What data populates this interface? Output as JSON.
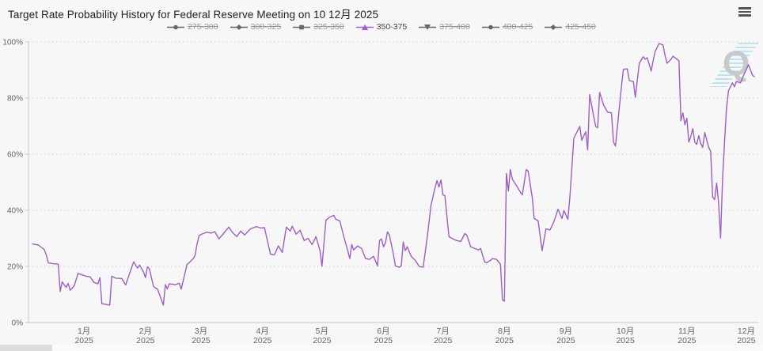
{
  "header": {
    "title": "Target Rate Probability History for Federal Reserve Meeting on 10 12月 2025"
  },
  "colors": {
    "active_series": "#9c5fc4",
    "inactive_legend": "#666666",
    "grid": "#d2d2d2",
    "axis": "#c9c9c9",
    "axis_label": "#666666",
    "background": "#f7f7f8",
    "watermark_letter": "#c9c9c9",
    "watermark_hatch": "#b9e1f3"
  },
  "watermark": {
    "letter": "Q"
  },
  "legend": {
    "items": [
      {
        "label": "275-300",
        "marker": "circle",
        "active": false
      },
      {
        "label": "300-325",
        "marker": "diamond",
        "active": false
      },
      {
        "label": "325-350",
        "marker": "square",
        "active": false
      },
      {
        "label": "350-375",
        "marker": "triangle-up",
        "active": true,
        "color": "#9c5fc4"
      },
      {
        "label": "375-400",
        "marker": "triangle-down",
        "active": false
      },
      {
        "label": "400-425",
        "marker": "circle",
        "active": false
      },
      {
        "label": "425-450",
        "marker": "diamond",
        "active": false
      }
    ]
  },
  "chart_data": {
    "type": "line",
    "title": "Target Rate Probability History for Federal Reserve Meeting on 10 12月 2025",
    "xlabel": "",
    "ylabel": "",
    "ylim": [
      0,
      100
    ],
    "grid": "dotted-horizontal",
    "legend_position": "top",
    "y_ticks": [
      {
        "label": "0%",
        "value": 0
      },
      {
        "label": "20%",
        "value": 20
      },
      {
        "label": "40%",
        "value": 40
      },
      {
        "label": "60%",
        "value": 60
      },
      {
        "label": "80%",
        "value": 80
      },
      {
        "label": "100%",
        "value": 100
      }
    ],
    "x_ticks": [
      {
        "month": "1月",
        "year": "2025",
        "date": "2025-01-01"
      },
      {
        "month": "2月",
        "year": "2025",
        "date": "2025-02-01"
      },
      {
        "month": "3月",
        "year": "2025",
        "date": "2025-03-01"
      },
      {
        "month": "4月",
        "year": "2025",
        "date": "2025-04-01"
      },
      {
        "month": "5月",
        "year": "2025",
        "date": "2025-05-01"
      },
      {
        "month": "6月",
        "year": "2025",
        "date": "2025-06-01"
      },
      {
        "month": "7月",
        "year": "2025",
        "date": "2025-07-01"
      },
      {
        "month": "8月",
        "year": "2025",
        "date": "2025-08-01"
      },
      {
        "month": "9月",
        "year": "2025",
        "date": "2025-09-01"
      },
      {
        "month": "10月",
        "year": "2025",
        "date": "2025-10-01"
      },
      {
        "month": "11月",
        "year": "2025",
        "date": "2025-11-01"
      },
      {
        "month": "12月",
        "year": "2025",
        "date": "2025-12-01"
      }
    ],
    "series": [
      {
        "name": "275-300",
        "visible": false
      },
      {
        "name": "300-325",
        "visible": false
      },
      {
        "name": "325-350",
        "visible": false
      },
      {
        "name": "350-375",
        "visible": true,
        "color": "#9c5fc4",
        "marker": "triangle-up",
        "points": [
          [
            "2024-12-06",
            28.0
          ],
          [
            "2024-12-09",
            27.6
          ],
          [
            "2024-12-12",
            26.0
          ],
          [
            "2024-12-13",
            24.0
          ],
          [
            "2024-12-14",
            21.3
          ],
          [
            "2024-12-16",
            21.0
          ],
          [
            "2024-12-19",
            20.8
          ],
          [
            "2024-12-20",
            11.0
          ],
          [
            "2024-12-21",
            14.5
          ],
          [
            "2024-12-23",
            12.5
          ],
          [
            "2024-12-24",
            14.0
          ],
          [
            "2024-12-25",
            11.5
          ],
          [
            "2024-12-27",
            13.0
          ],
          [
            "2024-12-29",
            17.5
          ],
          [
            "2024-12-31",
            17.0
          ],
          [
            "2025-01-02",
            16.5
          ],
          [
            "2025-01-04",
            16.3
          ],
          [
            "2025-01-06",
            14.3
          ],
          [
            "2025-01-08",
            13.8
          ],
          [
            "2025-01-09",
            16.0
          ],
          [
            "2025-01-10",
            6.7
          ],
          [
            "2025-01-12",
            6.5
          ],
          [
            "2025-01-14",
            6.2
          ],
          [
            "2025-01-15",
            16.5
          ],
          [
            "2025-01-17",
            15.8
          ],
          [
            "2025-01-20",
            15.7
          ],
          [
            "2025-01-22",
            13.4
          ],
          [
            "2025-01-26",
            21.6
          ],
          [
            "2025-01-28",
            19.4
          ],
          [
            "2025-01-29",
            20.5
          ],
          [
            "2025-01-31",
            18.0
          ],
          [
            "2025-02-01",
            16.0
          ],
          [
            "2025-02-02",
            19.9
          ],
          [
            "2025-02-03",
            19.1
          ],
          [
            "2025-02-05",
            13.0
          ],
          [
            "2025-02-06",
            12.3
          ],
          [
            "2025-02-07",
            12.0
          ],
          [
            "2025-02-10",
            6.2
          ],
          [
            "2025-02-11",
            13.5
          ],
          [
            "2025-02-12",
            12.0
          ],
          [
            "2025-02-13",
            13.8
          ],
          [
            "2025-02-16",
            13.5
          ],
          [
            "2025-02-18",
            14.0
          ],
          [
            "2025-02-19",
            11.9
          ],
          [
            "2025-02-22",
            20.8
          ],
          [
            "2025-02-23",
            21.3
          ],
          [
            "2025-02-25",
            22.7
          ],
          [
            "2025-02-26",
            24.0
          ],
          [
            "2025-02-27",
            28.0
          ],
          [
            "2025-02-28",
            31.0
          ],
          [
            "2025-03-02",
            31.7
          ],
          [
            "2025-03-04",
            32.2
          ],
          [
            "2025-03-06",
            31.9
          ],
          [
            "2025-03-08",
            32.4
          ],
          [
            "2025-03-10",
            29.8
          ],
          [
            "2025-03-12",
            31.4
          ],
          [
            "2025-03-15",
            34.0
          ],
          [
            "2025-03-17",
            32.0
          ],
          [
            "2025-03-19",
            30.6
          ],
          [
            "2025-03-21",
            32.6
          ],
          [
            "2025-03-23",
            31.2
          ],
          [
            "2025-03-26",
            33.4
          ],
          [
            "2025-03-29",
            34.2
          ],
          [
            "2025-03-31",
            33.7
          ],
          [
            "2025-04-02",
            33.8
          ],
          [
            "2025-04-05",
            24.4
          ],
          [
            "2025-04-07",
            24.1
          ],
          [
            "2025-04-09",
            27.3
          ],
          [
            "2025-04-11",
            25.0
          ],
          [
            "2025-04-13",
            34.0
          ],
          [
            "2025-04-15",
            32.6
          ],
          [
            "2025-04-16",
            34.3
          ],
          [
            "2025-04-18",
            31.5
          ],
          [
            "2025-04-20",
            32.9
          ],
          [
            "2025-04-22",
            29.2
          ],
          [
            "2025-04-24",
            30.0
          ],
          [
            "2025-04-26",
            27.8
          ],
          [
            "2025-04-28",
            30.6
          ],
          [
            "2025-04-30",
            25.6
          ],
          [
            "2025-05-01",
            20.0
          ],
          [
            "2025-05-03",
            36.5
          ],
          [
            "2025-05-05",
            37.6
          ],
          [
            "2025-05-07",
            38.2
          ],
          [
            "2025-05-08",
            36.8
          ],
          [
            "2025-05-10",
            36.2
          ],
          [
            "2025-05-12",
            30.6
          ],
          [
            "2025-05-14",
            25.6
          ],
          [
            "2025-05-15",
            22.8
          ],
          [
            "2025-05-16",
            27.8
          ],
          [
            "2025-05-17",
            25.9
          ],
          [
            "2025-05-19",
            27.3
          ],
          [
            "2025-05-21",
            26.4
          ],
          [
            "2025-05-23",
            22.8
          ],
          [
            "2025-05-25",
            22.5
          ],
          [
            "2025-05-27",
            23.6
          ],
          [
            "2025-05-29",
            20.2
          ],
          [
            "2025-05-30",
            29.2
          ],
          [
            "2025-05-31",
            29.8
          ],
          [
            "2025-06-01",
            27.0
          ],
          [
            "2025-06-02",
            28.4
          ],
          [
            "2025-06-03",
            32.3
          ],
          [
            "2025-06-04",
            31.2
          ],
          [
            "2025-06-06",
            24.4
          ],
          [
            "2025-06-07",
            20.2
          ],
          [
            "2025-06-09",
            19.7
          ],
          [
            "2025-06-10",
            20.2
          ],
          [
            "2025-06-11",
            28.7
          ],
          [
            "2025-06-12",
            25.6
          ],
          [
            "2025-06-13",
            27.0
          ],
          [
            "2025-06-15",
            23.6
          ],
          [
            "2025-06-17",
            22.2
          ],
          [
            "2025-06-19",
            20.0
          ],
          [
            "2025-06-21",
            19.7
          ],
          [
            "2025-06-23",
            30.0
          ],
          [
            "2025-06-25",
            41.9
          ],
          [
            "2025-06-27",
            48.0
          ],
          [
            "2025-06-28",
            50.6
          ],
          [
            "2025-06-29",
            48.3
          ],
          [
            "2025-06-30",
            50.8
          ],
          [
            "2025-07-01",
            45.5
          ],
          [
            "2025-07-02",
            45.2
          ],
          [
            "2025-07-04",
            30.6
          ],
          [
            "2025-07-06",
            29.8
          ],
          [
            "2025-07-08",
            29.2
          ],
          [
            "2025-07-10",
            28.9
          ],
          [
            "2025-07-12",
            31.7
          ],
          [
            "2025-07-13",
            31.2
          ],
          [
            "2025-07-15",
            27.0
          ],
          [
            "2025-07-17",
            26.4
          ],
          [
            "2025-07-19",
            25.9
          ],
          [
            "2025-07-20",
            26.4
          ],
          [
            "2025-07-22",
            21.6
          ],
          [
            "2025-07-23",
            21.3
          ],
          [
            "2025-07-25",
            22.2
          ],
          [
            "2025-07-26",
            22.8
          ],
          [
            "2025-07-28",
            22.5
          ],
          [
            "2025-07-30",
            20.8
          ],
          [
            "2025-07-31",
            8.1
          ],
          [
            "2025-08-01",
            7.6
          ],
          [
            "2025-08-02",
            53.1
          ],
          [
            "2025-08-03",
            46.9
          ],
          [
            "2025-08-04",
            54.5
          ],
          [
            "2025-08-05",
            51.1
          ],
          [
            "2025-08-07",
            48.9
          ],
          [
            "2025-08-09",
            46.5
          ],
          [
            "2025-08-10",
            45.5
          ],
          [
            "2025-08-12",
            54.5
          ],
          [
            "2025-08-13",
            53.9
          ],
          [
            "2025-08-15",
            44.7
          ],
          [
            "2025-08-16",
            37.1
          ],
          [
            "2025-08-18",
            36.2
          ],
          [
            "2025-08-20",
            25.6
          ],
          [
            "2025-08-22",
            33.4
          ],
          [
            "2025-08-24",
            33.0
          ],
          [
            "2025-08-26",
            36.0
          ],
          [
            "2025-08-28",
            40.4
          ],
          [
            "2025-08-30",
            37.1
          ],
          [
            "2025-08-31",
            39.9
          ],
          [
            "2025-09-02",
            36.8
          ],
          [
            "2025-09-03",
            44.7
          ],
          [
            "2025-09-05",
            65.7
          ],
          [
            "2025-09-07",
            68.5
          ],
          [
            "2025-09-08",
            69.9
          ],
          [
            "2025-09-09",
            64.9
          ],
          [
            "2025-09-11",
            68.0
          ],
          [
            "2025-09-12",
            61.5
          ],
          [
            "2025-09-13",
            81.2
          ],
          [
            "2025-09-15",
            73.6
          ],
          [
            "2025-09-16",
            69.9
          ],
          [
            "2025-09-17",
            69.4
          ],
          [
            "2025-09-18",
            82.0
          ],
          [
            "2025-09-20",
            77.5
          ],
          [
            "2025-09-22",
            75.0
          ],
          [
            "2025-09-24",
            74.7
          ],
          [
            "2025-09-25",
            64.3
          ],
          [
            "2025-09-26",
            62.9
          ],
          [
            "2025-09-27",
            69.9
          ],
          [
            "2025-09-29",
            84.0
          ],
          [
            "2025-09-30",
            90.2
          ],
          [
            "2025-10-02",
            90.4
          ],
          [
            "2025-10-03",
            86.2
          ],
          [
            "2025-10-05",
            85.9
          ],
          [
            "2025-10-06",
            80.3
          ],
          [
            "2025-10-08",
            92.4
          ],
          [
            "2025-10-10",
            94.7
          ],
          [
            "2025-10-11",
            93.8
          ],
          [
            "2025-10-12",
            94.4
          ],
          [
            "2025-10-14",
            89.6
          ],
          [
            "2025-10-15",
            93.3
          ],
          [
            "2025-10-16",
            96.6
          ],
          [
            "2025-10-18",
            99.4
          ],
          [
            "2025-10-20",
            98.9
          ],
          [
            "2025-10-21",
            95.2
          ],
          [
            "2025-10-22",
            92.4
          ],
          [
            "2025-10-24",
            93.8
          ],
          [
            "2025-10-25",
            94.9
          ],
          [
            "2025-10-26",
            94.4
          ],
          [
            "2025-10-28",
            93.3
          ],
          [
            "2025-10-29",
            71.9
          ],
          [
            "2025-10-30",
            74.7
          ],
          [
            "2025-10-31",
            70.5
          ],
          [
            "2025-11-01",
            72.8
          ],
          [
            "2025-11-02",
            64.3
          ],
          [
            "2025-11-03",
            66.3
          ],
          [
            "2025-11-04",
            69.1
          ],
          [
            "2025-11-05",
            64.3
          ],
          [
            "2025-11-06",
            63.5
          ],
          [
            "2025-11-07",
            66.6
          ],
          [
            "2025-11-08",
            63.8
          ],
          [
            "2025-11-09",
            62.4
          ],
          [
            "2025-11-10",
            67.7
          ],
          [
            "2025-11-12",
            62.4
          ],
          [
            "2025-11-13",
            61.0
          ],
          [
            "2025-11-14",
            44.7
          ],
          [
            "2025-11-15",
            43.8
          ],
          [
            "2025-11-16",
            49.7
          ],
          [
            "2025-11-17",
            42.7
          ],
          [
            "2025-11-18",
            30.1
          ],
          [
            "2025-11-19",
            51.1
          ],
          [
            "2025-11-20",
            64.3
          ],
          [
            "2025-11-21",
            76.4
          ],
          [
            "2025-11-22",
            82.6
          ],
          [
            "2025-11-24",
            85.4
          ],
          [
            "2025-11-25",
            84.0
          ],
          [
            "2025-11-26",
            85.9
          ],
          [
            "2025-11-28",
            85.4
          ],
          [
            "2025-11-30",
            88.8
          ],
          [
            "2025-12-01",
            90.2
          ],
          [
            "2025-12-02",
            91.9
          ],
          [
            "2025-12-03",
            90.2
          ],
          [
            "2025-12-04",
            88.2
          ],
          [
            "2025-12-05",
            87.6
          ]
        ]
      },
      {
        "name": "375-400",
        "visible": false
      },
      {
        "name": "400-425",
        "visible": false
      },
      {
        "name": "425-450",
        "visible": false
      }
    ]
  }
}
